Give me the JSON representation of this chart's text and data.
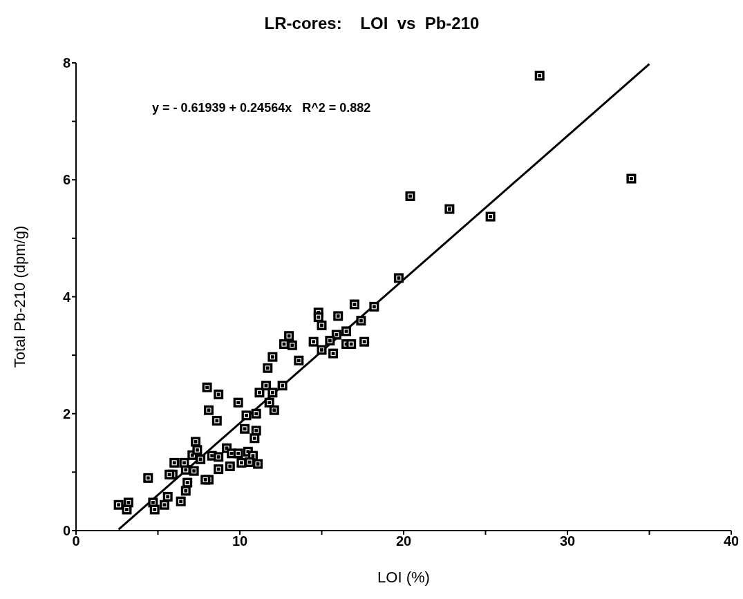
{
  "chart_data": {
    "type": "scatter",
    "title": "LR-cores:    LOI  vs  Pb-210",
    "xlabel": "LOI (%)",
    "ylabel": "Total Pb-210 (dpm/g)",
    "annotations": [
      "y = - 0.61939 + 0.24564x   R^2 = 0.882"
    ],
    "xlim": [
      0,
      40
    ],
    "xticks": [
      0,
      {
        "value": 5,
        "label": null
      },
      10,
      {
        "value": 15,
        "label": null
      },
      20,
      {
        "value": 25,
        "label": null
      },
      30,
      {
        "value": 35,
        "label": null
      },
      40
    ],
    "ylim": [
      0,
      8
    ],
    "yticks": [
      0,
      {
        "value": 1,
        "label": null
      },
      2,
      {
        "value": 3,
        "label": null
      },
      4,
      {
        "value": 5,
        "label": null
      },
      6,
      {
        "value": 7,
        "label": null
      },
      8
    ],
    "grid": false,
    "marker": "square",
    "series": [
      {
        "color": "#000000",
        "x": [
          2.6,
          3.2,
          3.1,
          4.4,
          4.7,
          4.8,
          5.4,
          5.6,
          6.4,
          6.7,
          6.8,
          5.9,
          5.7,
          6.0,
          6.7,
          7.2,
          6.6,
          7.1,
          7.4,
          7.3,
          7.6,
          8.1,
          7.9,
          8.3,
          8.7,
          8.7,
          9.4,
          9.2,
          9.5,
          9.9,
          10.1,
          10.5,
          10.8,
          10.6,
          11.1,
          8.0,
          8.7,
          8.1,
          8.6,
          9.9,
          10.4,
          11.0,
          10.3,
          11.0,
          10.9,
          11.2,
          11.6,
          11.8,
          12.1,
          12.0,
          14.8,
          14.8,
          15.0,
          16.0,
          17.0,
          18.2,
          17.4,
          16.5,
          15.9,
          14.5,
          15.0,
          15.7,
          15.5,
          16.5,
          16.8,
          17.6,
          13.0,
          12.7,
          13.2,
          13.6,
          12.0,
          11.7,
          12.6,
          20.4,
          22.8,
          25.3,
          33.9,
          19.7,
          28.3
        ],
        "values": [
          0.44,
          0.48,
          0.36,
          0.9,
          0.48,
          0.36,
          0.44,
          0.58,
          0.5,
          0.68,
          0.82,
          0.96,
          0.96,
          1.16,
          1.04,
          1.02,
          1.16,
          1.29,
          1.38,
          1.52,
          1.22,
          0.87,
          0.87,
          1.28,
          1.26,
          1.05,
          1.1,
          1.41,
          1.32,
          1.32,
          1.16,
          1.35,
          1.28,
          1.17,
          1.14,
          2.45,
          2.33,
          2.06,
          1.88,
          2.19,
          1.97,
          2.0,
          1.74,
          1.71,
          1.58,
          2.36,
          2.48,
          2.19,
          2.06,
          2.36,
          3.73,
          3.65,
          3.51,
          3.67,
          3.87,
          3.83,
          3.59,
          3.41,
          3.35,
          3.23,
          3.09,
          3.03,
          3.25,
          3.19,
          3.19,
          3.23,
          3.33,
          3.19,
          3.17,
          2.91,
          2.97,
          2.78,
          2.48,
          5.72,
          5.5,
          5.37,
          6.02,
          4.32,
          7.78
        ]
      },
      {
        "type": "line",
        "marker": "none",
        "color": "#000000",
        "x": [
          2.6,
          35
        ],
        "values": [
          0.02,
          7.98
        ]
      }
    ]
  }
}
